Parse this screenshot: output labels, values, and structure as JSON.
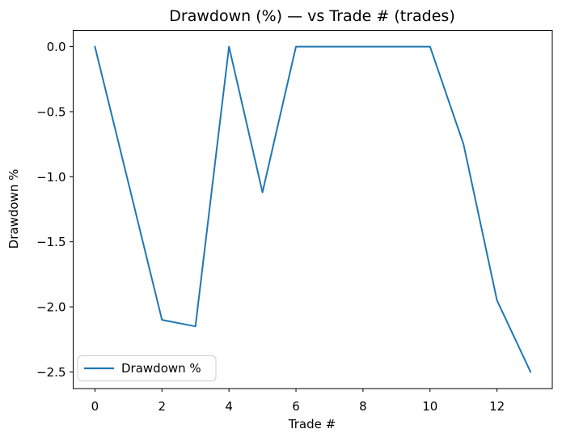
{
  "figure": {
    "background": "#ffffff",
    "axis_color": "#000000"
  },
  "chart_data": {
    "type": "line",
    "title": "Drawdown (%) — vs Trade # (trades)",
    "xlabel": "Trade #",
    "ylabel": "Drawdown %",
    "x": [
      0,
      1,
      2,
      3,
      4,
      5,
      6,
      7,
      8,
      9,
      10,
      11,
      12,
      13
    ],
    "series": [
      {
        "name": "Drawdown %",
        "color": "#1f77b4",
        "values": [
          0.0,
          -1.05,
          -2.1,
          -2.15,
          0.0,
          -1.12,
          0.0,
          0.0,
          0.0,
          0.0,
          0.0,
          -0.75,
          -1.95,
          -2.5
        ]
      }
    ],
    "xlim": [
      -0.65,
      13.65
    ],
    "ylim": [
      -2.625,
      0.125
    ],
    "xticks": {
      "values": [
        0,
        2,
        4,
        6,
        8,
        10,
        12
      ],
      "labels": [
        "0",
        "2",
        "4",
        "6",
        "8",
        "10",
        "12"
      ]
    },
    "yticks": {
      "values": [
        0.0,
        -0.5,
        -1.0,
        -1.5,
        -2.0,
        -2.5
      ],
      "labels": [
        "0.0",
        "−0.5",
        "−1.0",
        "−1.5",
        "−2.0",
        "−2.5"
      ]
    },
    "grid": false,
    "legend": {
      "position": "lower left",
      "entries": [
        {
          "label": "Drawdown %",
          "color": "#1f77b4"
        }
      ]
    }
  }
}
